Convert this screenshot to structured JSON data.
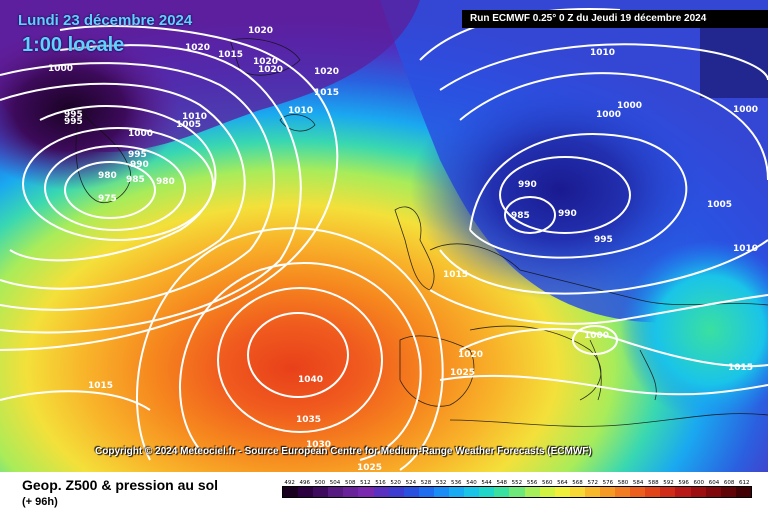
{
  "header": {
    "date": "Lundi 23 décembre 2024",
    "time": "1:00 locale",
    "run": "Run ECMWF 0.25° 0 Z du Jeudi 19 décembre 2024"
  },
  "copyright": "Copyright © 2024 Meteociel.fr - Source European Centre for Medium-Range Weather Forecasts (ECMWF)",
  "footer": {
    "title": "Geop. Z500 & pression au sol",
    "subtitle": "(+ 96h)"
  },
  "scale": {
    "values": [
      "492",
      "496",
      "500",
      "504",
      "508",
      "512",
      "516",
      "520",
      "524",
      "528",
      "532",
      "536",
      "540",
      "544",
      "548",
      "552",
      "556",
      "560",
      "564",
      "568",
      "572",
      "576",
      "580",
      "584",
      "588",
      "592",
      "596",
      "600",
      "604",
      "608",
      "612"
    ],
    "colors": [
      "#1a0020",
      "#2c0040",
      "#3e0a5e",
      "#561a80",
      "#6a229a",
      "#7a28b0",
      "#5a30c0",
      "#3c3cd0",
      "#2a50e0",
      "#1e6cf0",
      "#1a8cf6",
      "#18aaf2",
      "#1ac4e8",
      "#20d6c8",
      "#3ae0a0",
      "#6ee878",
      "#a6ee5a",
      "#d2f242",
      "#f0f03a",
      "#f8d834",
      "#f8b82c",
      "#f69a26",
      "#f27c22",
      "#ec5e1e",
      "#e2441a",
      "#d02a18",
      "#b81818",
      "#9c0e10",
      "#80080c",
      "#600408",
      "#400004"
    ]
  },
  "isobar_labels": [
    {
      "text": "1020"
    },
    {
      "text": "1020"
    },
    {
      "text": "1015"
    },
    {
      "text": "1020"
    },
    {
      "text": "1020"
    },
    {
      "text": "1000"
    },
    {
      "text": "1020"
    },
    {
      "text": "1015"
    },
    {
      "text": "1010"
    },
    {
      "text": "995"
    },
    {
      "text": "995"
    },
    {
      "text": "1010"
    },
    {
      "text": "1005"
    },
    {
      "text": "1000"
    },
    {
      "text": "995"
    },
    {
      "text": "990"
    },
    {
      "text": "985"
    },
    {
      "text": "980"
    },
    {
      "text": "980"
    },
    {
      "text": "975"
    },
    {
      "text": "1010"
    },
    {
      "text": "1000"
    },
    {
      "text": "1000"
    },
    {
      "text": "1000"
    },
    {
      "text": "990"
    },
    {
      "text": "990"
    },
    {
      "text": "985"
    },
    {
      "text": "995"
    },
    {
      "text": "1005"
    },
    {
      "text": "1010"
    },
    {
      "text": "1015"
    },
    {
      "text": "1000"
    },
    {
      "text": "1015"
    },
    {
      "text": "1020"
    },
    {
      "text": "1025"
    },
    {
      "text": "1040"
    },
    {
      "text": "1035"
    },
    {
      "text": "1030"
    },
    {
      "text": "1025"
    },
    {
      "text": "1015"
    }
  ]
}
